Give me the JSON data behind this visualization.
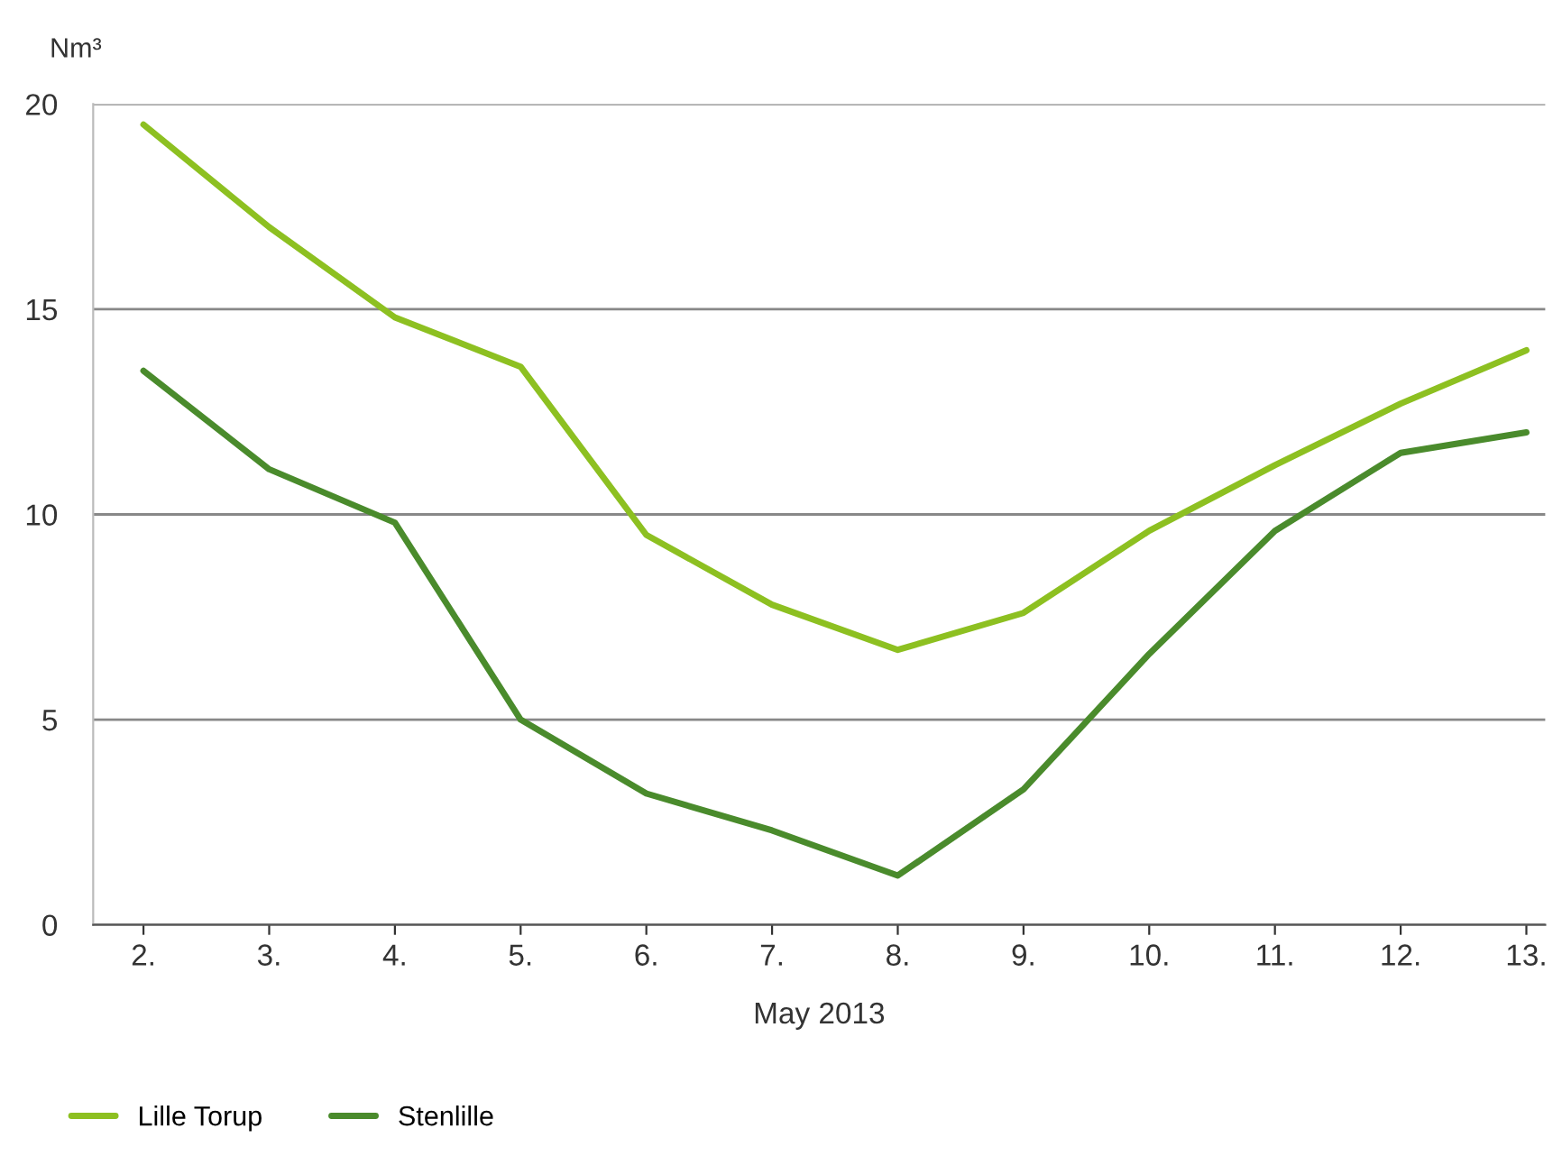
{
  "chart_data": {
    "type": "line",
    "ylabel": "Nm³",
    "xlabel": "May 2013",
    "categories": [
      "2.",
      "3.",
      "4.",
      "5.",
      "6.",
      "7.",
      "8.",
      "9.",
      "10.",
      "11.",
      "12.",
      "13."
    ],
    "series": [
      {
        "name": "Lille Torup",
        "color": "#8dc021",
        "values": [
          19.5,
          17.0,
          14.8,
          13.6,
          9.5,
          7.8,
          6.7,
          7.6,
          9.6,
          11.2,
          12.7,
          14.0
        ]
      },
      {
        "name": "Stenlille",
        "color": "#4a8b2c",
        "values": [
          13.5,
          11.1,
          9.8,
          5.0,
          3.2,
          2.3,
          1.2,
          3.3,
          6.6,
          9.6,
          11.5,
          12.0
        ]
      }
    ],
    "ylim": [
      0,
      20
    ],
    "yticks": [
      0,
      5,
      10,
      15,
      20
    ],
    "grid": "y",
    "legend": "bottom left",
    "marker": "none",
    "line_style": "solid"
  }
}
